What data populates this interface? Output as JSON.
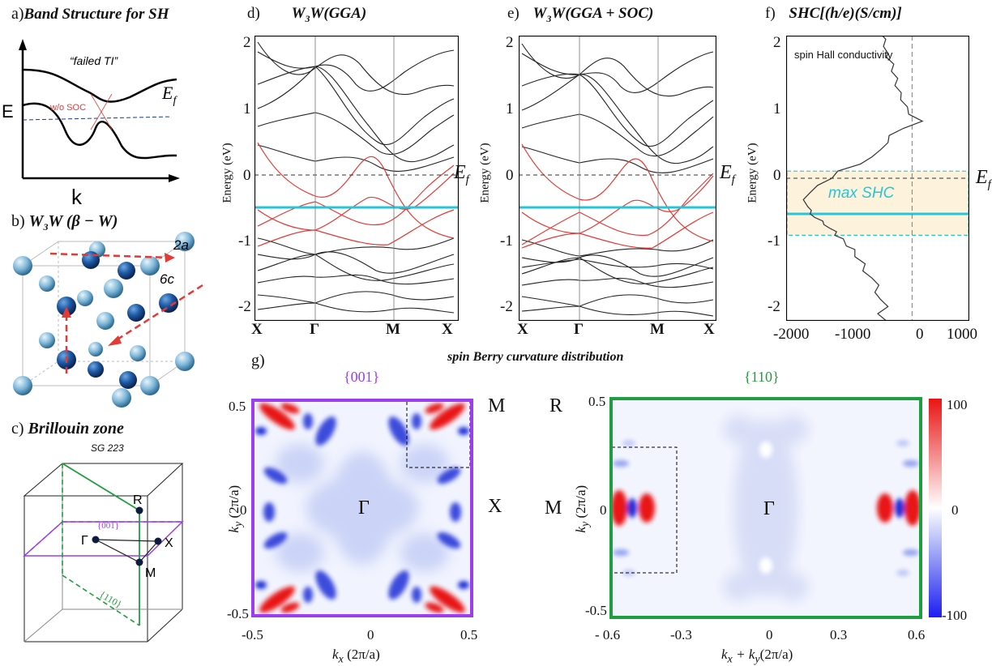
{
  "panel_a": {
    "letter": "a)",
    "title": "Band Structure for SH",
    "failed_label": "“failed TI”",
    "ef_label": "E",
    "ef_sub": "f",
    "wo_soc": "w/o SOC",
    "axis_e": "E",
    "axis_k": "k"
  },
  "panel_b": {
    "letter": "b)",
    "title_main": "W",
    "title_sub": "3",
    "title_rest": "W (β − W)",
    "site_2a": "2a",
    "site_6c": "6c"
  },
  "panel_c": {
    "letter": "c)",
    "title": "Brillouin zone",
    "space_group": "SG 223",
    "points": {
      "R": "R",
      "Gamma": "Γ",
      "X": "X",
      "M": "M"
    },
    "plane_001": "{001}",
    "plane_110": "{110}"
  },
  "panel_d": {
    "letter": "d)",
    "title": "W",
    "title_sub": "3",
    "title_rest": "W(GGA)",
    "ylabel": "Energy (eV)",
    "yticks": [
      "2",
      "1",
      "0",
      "-1",
      "-2"
    ],
    "kpoints": [
      "X",
      "Γ",
      "M",
      "X"
    ],
    "ef": "E",
    "ef_sub": "f"
  },
  "panel_e": {
    "letter": "e)",
    "title": "W",
    "title_sub": "3",
    "title_rest": "W(GGA + SOC)",
    "ylabel": "Energy (eV)",
    "yticks": [
      "2",
      "1",
      "0",
      "-1",
      "-2"
    ],
    "kpoints": [
      "X",
      "Γ",
      "M",
      "X"
    ],
    "ef": "E",
    "ef_sub": "f"
  },
  "panel_f": {
    "letter": "f)",
    "title": "SHC[(h/e)(S/cm)]",
    "inner_label": "spin Hall conductivity",
    "ylabel": "Energy (eV)",
    "yticks": [
      "2",
      "1",
      "0",
      "-1",
      "-2"
    ],
    "xticks": [
      "-2000",
      "-1000",
      "0",
      "1000"
    ],
    "band_label": "max SHC",
    "ef": "E",
    "ef_sub": "f"
  },
  "panel_g": {
    "letter": "g)",
    "title": "spin Berry curvature distribution",
    "map1": {
      "title": "{001}",
      "xlabel": "k",
      "xlabel_sub": "x",
      "xlabel_unit": " (2π/a)",
      "ylabel": "k",
      "ylabel_sub": "y",
      "ylabel_unit": " (2π/a)",
      "xticks": [
        "-0.5",
        "0",
        "0.5"
      ],
      "yticks": [
        "0.5",
        "0",
        "-0.5"
      ],
      "points": {
        "M": "M",
        "X": "X",
        "Gamma": "Γ"
      }
    },
    "map2": {
      "title": "{110}",
      "xlabel": "k",
      "xlabel_sub": "x",
      "xlabel_mid": " + k",
      "xlabel_sub2": "y",
      "xlabel_unit": "(2π/a)",
      "ylabel": "k",
      "ylabel_sub": "y",
      "ylabel_unit": " (2π/a)",
      "xticks": [
        "- 0.6",
        "-0.3",
        "0",
        "0.3",
        "0.6"
      ],
      "yticks": [
        "0.5",
        "0",
        "-0.5"
      ],
      "points": {
        "R": "R",
        "M": "M",
        "Gamma": "Γ"
      }
    },
    "colorbar": {
      "ticks": [
        "100",
        "0",
        "-100"
      ]
    }
  },
  "colors": {
    "red_band": "#e53935",
    "cyan": "#26c6da",
    "purple": "#9c3ef0",
    "green": "#1e9e3e",
    "shc_fill": "#fdf3dc"
  },
  "chart_data": [
    {
      "type": "line",
      "panel": "f",
      "title": "SHC[(h/e)(S/cm)]",
      "xlabel": "",
      "ylabel": "Energy (eV)",
      "xlim": [
        -2200,
        1000
      ],
      "ylim": [
        -2,
        2
      ],
      "series": [
        {
          "x": [
            -450,
            -600,
            -420,
            -550,
            -650,
            -580,
            -700,
            -860,
            -820,
            -1000,
            -1000,
            -1150,
            -1200,
            -1350,
            -1320,
            -1440,
            -1540,
            -1560,
            -1700,
            -1780,
            -1760,
            -1820,
            -1900,
            -1780,
            -1650,
            -1400,
            -1300,
            -900,
            -700,
            -550,
            -420,
            -400,
            -150,
            180,
            -60,
            -80,
            -200,
            -190,
            -300,
            -250,
            -360,
            -320,
            -450,
            -420,
            -500,
            -460,
            -520
          ],
          "y": [
            -2.0,
            -1.9,
            -1.8,
            -1.7,
            -1.6,
            -1.5,
            -1.4,
            -1.3,
            -1.2,
            -1.1,
            -1.0,
            -0.95,
            -0.85,
            -0.8,
            -0.75,
            -0.7,
            -0.65,
            -0.6,
            -0.55,
            -0.5,
            -0.45,
            -0.4,
            -0.3,
            -0.2,
            -0.1,
            0.0,
            0.1,
            0.2,
            0.3,
            0.4,
            0.5,
            0.6,
            0.7,
            0.8,
            0.9,
            1.0,
            1.1,
            1.2,
            1.3,
            1.4,
            1.5,
            1.6,
            1.7,
            1.75,
            1.85,
            1.95,
            2.0
          ]
        }
      ],
      "annotations": [
        "max SHC",
        "spin Hall conductivity"
      ],
      "highlight_band": [
        -0.8,
        0.1
      ],
      "line_marker_y": -0.5
    }
  ]
}
